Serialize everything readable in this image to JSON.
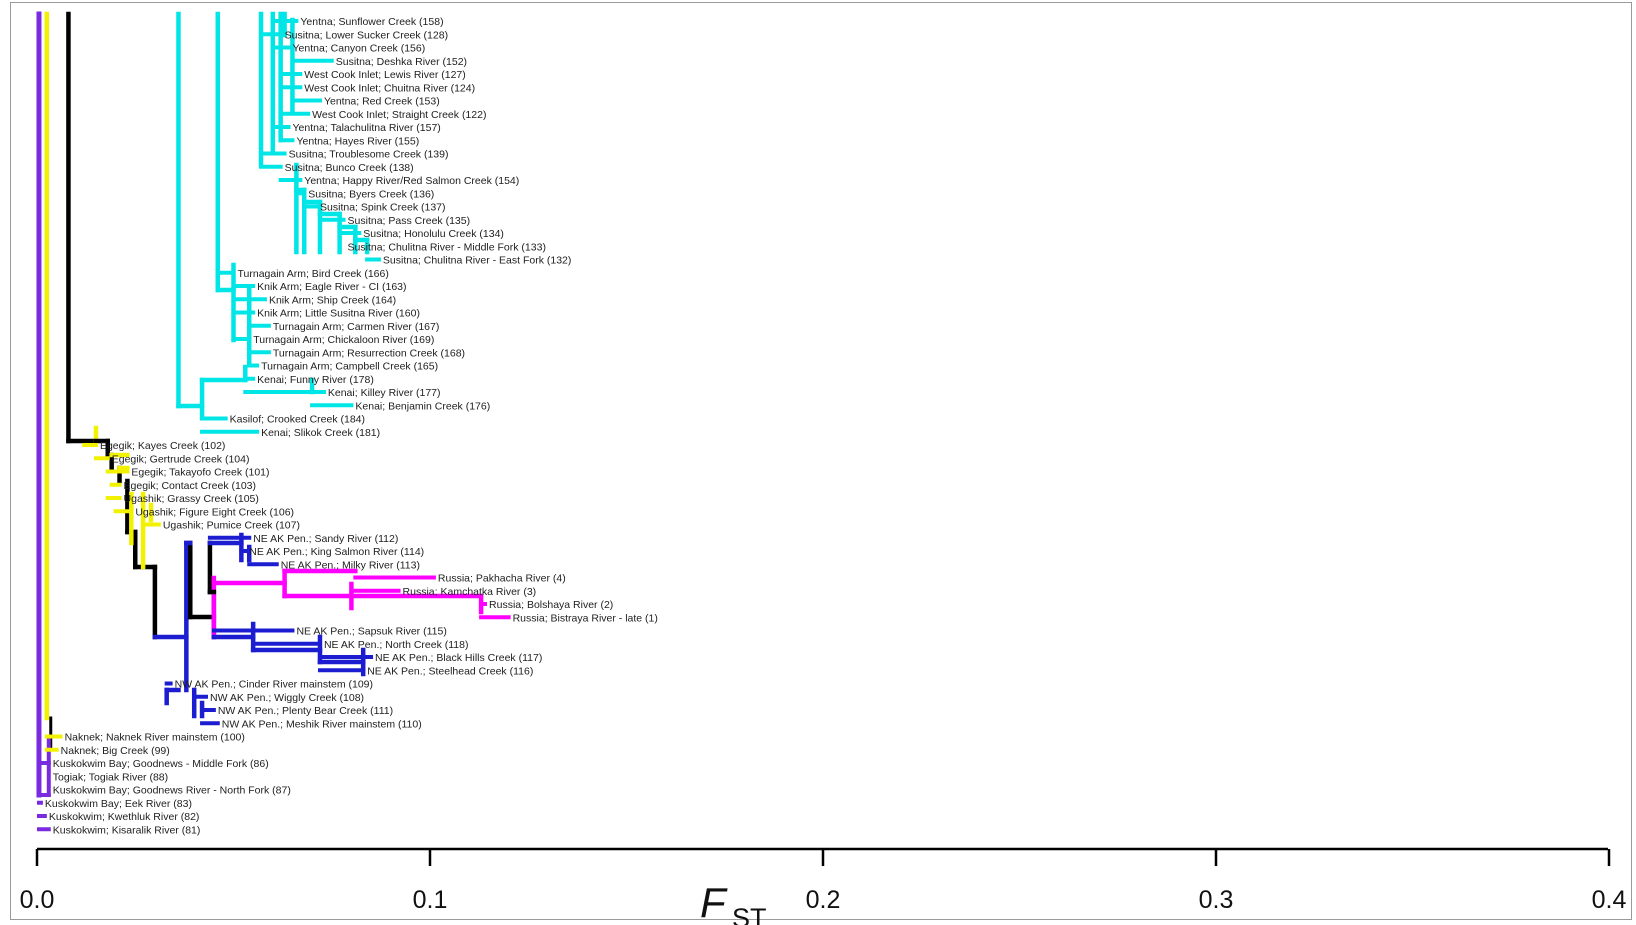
{
  "chart_data": {
    "type": "dendrogram",
    "xlabel": "F",
    "xlabel_subscript": "ST",
    "xlim": [
      0.0,
      0.4
    ],
    "x_ticks": [
      {
        "value": 0.0,
        "label": "0.0"
      },
      {
        "value": 0.1,
        "label": "0.1"
      },
      {
        "value": 0.2,
        "label": "0.2"
      },
      {
        "value": 0.3,
        "label": "0.3"
      },
      {
        "value": 0.4,
        "label": "0.4"
      }
    ],
    "colors": {
      "trunk": "#000000",
      "cyan_cluster": "#00e5e5",
      "yellow_cluster": "#f2f200",
      "blue_cluster": "#1c1cd0",
      "magenta_cluster": "#ff00ff",
      "purple_cluster": "#7a2be0"
    },
    "leaves": [
      {
        "label": "Yentna; Sunflower Creek (158)",
        "x": 0.066,
        "color": "cyan"
      },
      {
        "label": "Susitna; Lower Sucker Creek (128)",
        "x": 0.062,
        "color": "cyan"
      },
      {
        "label": "Yentna; Canyon Creek (156)",
        "x": 0.064,
        "color": "cyan"
      },
      {
        "label": "Susitna; Deshka River (152)",
        "x": 0.075,
        "color": "cyan"
      },
      {
        "label": "West Cook Inlet; Lewis River (127)",
        "x": 0.067,
        "color": "cyan"
      },
      {
        "label": "West Cook Inlet; Chuitna River (124)",
        "x": 0.067,
        "color": "cyan"
      },
      {
        "label": "Yentna; Red Creek (153)",
        "x": 0.072,
        "color": "cyan"
      },
      {
        "label": "West Cook Inlet; Straight Creek (122)",
        "x": 0.069,
        "color": "cyan"
      },
      {
        "label": "Yentna; Talachulitna River (157)",
        "x": 0.064,
        "color": "cyan"
      },
      {
        "label": "Yentna; Hayes River (155)",
        "x": 0.065,
        "color": "cyan"
      },
      {
        "label": "Susitna; Troublesome Creek (139)",
        "x": 0.063,
        "color": "cyan"
      },
      {
        "label": "Susitna; Bunco Creek (138)",
        "x": 0.062,
        "color": "cyan"
      },
      {
        "label": "Yentna; Happy River/Red Salmon Creek (154)",
        "x": 0.067,
        "color": "cyan"
      },
      {
        "label": "Susitna; Byers Creek (136)",
        "x": 0.068,
        "color": "cyan"
      },
      {
        "label": "Susitna; Spink Creek (137)",
        "x": 0.071,
        "color": "cyan"
      },
      {
        "label": "Susitna; Pass Creek (135)",
        "x": 0.078,
        "color": "cyan"
      },
      {
        "label": "Susitna; Honolulu Creek (134)",
        "x": 0.082,
        "color": "cyan"
      },
      {
        "label": "Susitna; Chulitna River - Middle Fork (133)",
        "x": 0.078,
        "color": "cyan"
      },
      {
        "label": "Susitna; Chulitna River - East Fork (132)",
        "x": 0.087,
        "color": "cyan"
      },
      {
        "label": "Turnagain Arm; Bird Creek (166)",
        "x": 0.05,
        "color": "cyan"
      },
      {
        "label": "Knik Arm; Eagle River - CI (163)",
        "x": 0.055,
        "color": "cyan"
      },
      {
        "label": "Knik Arm; Ship Creek (164)",
        "x": 0.058,
        "color": "cyan"
      },
      {
        "label": "Knik Arm; Little Susitna River (160)",
        "x": 0.055,
        "color": "cyan"
      },
      {
        "label": "Turnagain Arm; Carmen River (167)",
        "x": 0.059,
        "color": "cyan"
      },
      {
        "label": "Turnagain Arm; Chickaloon River (169)",
        "x": 0.054,
        "color": "cyan"
      },
      {
        "label": "Turnagain Arm; Resurrection Creek (168)",
        "x": 0.059,
        "color": "cyan"
      },
      {
        "label": "Turnagain Arm; Campbell Creek (165)",
        "x": 0.056,
        "color": "cyan"
      },
      {
        "label": "Kenai; Funny River (178)",
        "x": 0.055,
        "color": "cyan"
      },
      {
        "label": "Kenai; Killey River (177)",
        "x": 0.073,
        "color": "cyan"
      },
      {
        "label": "Kenai; Benjamin Creek (176)",
        "x": 0.08,
        "color": "cyan"
      },
      {
        "label": "Kasilof; Crooked Creek (184)",
        "x": 0.048,
        "color": "cyan"
      },
      {
        "label": "Kenai; Slikok Creek (181)",
        "x": 0.056,
        "color": "cyan"
      },
      {
        "label": "Egegik; Kayes Creek (102)",
        "x": 0.015,
        "color": "yellow"
      },
      {
        "label": "Egegik; Gertrude Creek (104)",
        "x": 0.018,
        "color": "yellow"
      },
      {
        "label": "Egegik; Takayofo Creek (101)",
        "x": 0.023,
        "color": "yellow"
      },
      {
        "label": "Egegik; Contact Creek (103)",
        "x": 0.021,
        "color": "yellow"
      },
      {
        "label": "Ugashik; Grassy Creek (105)",
        "x": 0.021,
        "color": "yellow"
      },
      {
        "label": "Ugashik; Figure Eight Creek (106)",
        "x": 0.024,
        "color": "yellow"
      },
      {
        "label": "Ugashik; Pumice Creek (107)",
        "x": 0.031,
        "color": "yellow"
      },
      {
        "label": "NE AK Pen.; Sandy River (112)",
        "x": 0.054,
        "color": "blue"
      },
      {
        "label": "NE AK Pen.; King Salmon River (114)",
        "x": 0.053,
        "color": "blue"
      },
      {
        "label": "NE AK Pen.; Milky River (113)",
        "x": 0.061,
        "color": "blue"
      },
      {
        "label": "Russia; Pakhacha River (4)",
        "x": 0.101,
        "color": "magenta"
      },
      {
        "label": "Russia; Kamchatka River (3)",
        "x": 0.092,
        "color": "magenta"
      },
      {
        "label": "Russia; Bolshaya River (2)",
        "x": 0.114,
        "color": "magenta"
      },
      {
        "label": "Russia; Bistraya River - late (1)",
        "x": 0.12,
        "color": "magenta"
      },
      {
        "label": "NE AK Pen.; Sapsuk River (115)",
        "x": 0.065,
        "color": "blue"
      },
      {
        "label": "NE AK Pen.; North Creek (118)",
        "x": 0.072,
        "color": "blue"
      },
      {
        "label": "NE AK Pen.; Black Hills Creek (117)",
        "x": 0.085,
        "color": "blue"
      },
      {
        "label": "NE AK Pen.; Steelhead Creek (116)",
        "x": 0.083,
        "color": "blue"
      },
      {
        "label": "NW AK Pen.; Cinder River mainstem (109)",
        "x": 0.034,
        "color": "blue"
      },
      {
        "label": "NW AK Pen.; Wiggly Creek (108)",
        "x": 0.043,
        "color": "blue"
      },
      {
        "label": "NW AK Pen.; Plenty Bear Creek (111)",
        "x": 0.045,
        "color": "blue"
      },
      {
        "label": "NW AK Pen.; Meshik River mainstem (110)",
        "x": 0.046,
        "color": "blue"
      },
      {
        "label": "Naknek; Naknek River mainstem (100)",
        "x": 0.006,
        "color": "yellow"
      },
      {
        "label": "Naknek; Big Creek (99)",
        "x": 0.005,
        "color": "yellow"
      },
      {
        "label": "Kuskokwim Bay; Goodnews - Middle Fork (86)",
        "x": 0.003,
        "color": "purple"
      },
      {
        "label": "Togiak; Togiak River (88)",
        "x": 0.003,
        "color": "black"
      },
      {
        "label": "Kuskokwim Bay; Goodnews River - North Fork (87)",
        "x": 0.003,
        "color": "purple"
      },
      {
        "label": "Kuskokwim Bay; Eek River (83)",
        "x": 0.001,
        "color": "purple"
      },
      {
        "label": "Kuskokwim; Kwethluk River (82)",
        "x": 0.002,
        "color": "purple"
      },
      {
        "label": "Kuskokwim; Kisaralik River (81)",
        "x": 0.003,
        "color": "purple"
      }
    ]
  }
}
